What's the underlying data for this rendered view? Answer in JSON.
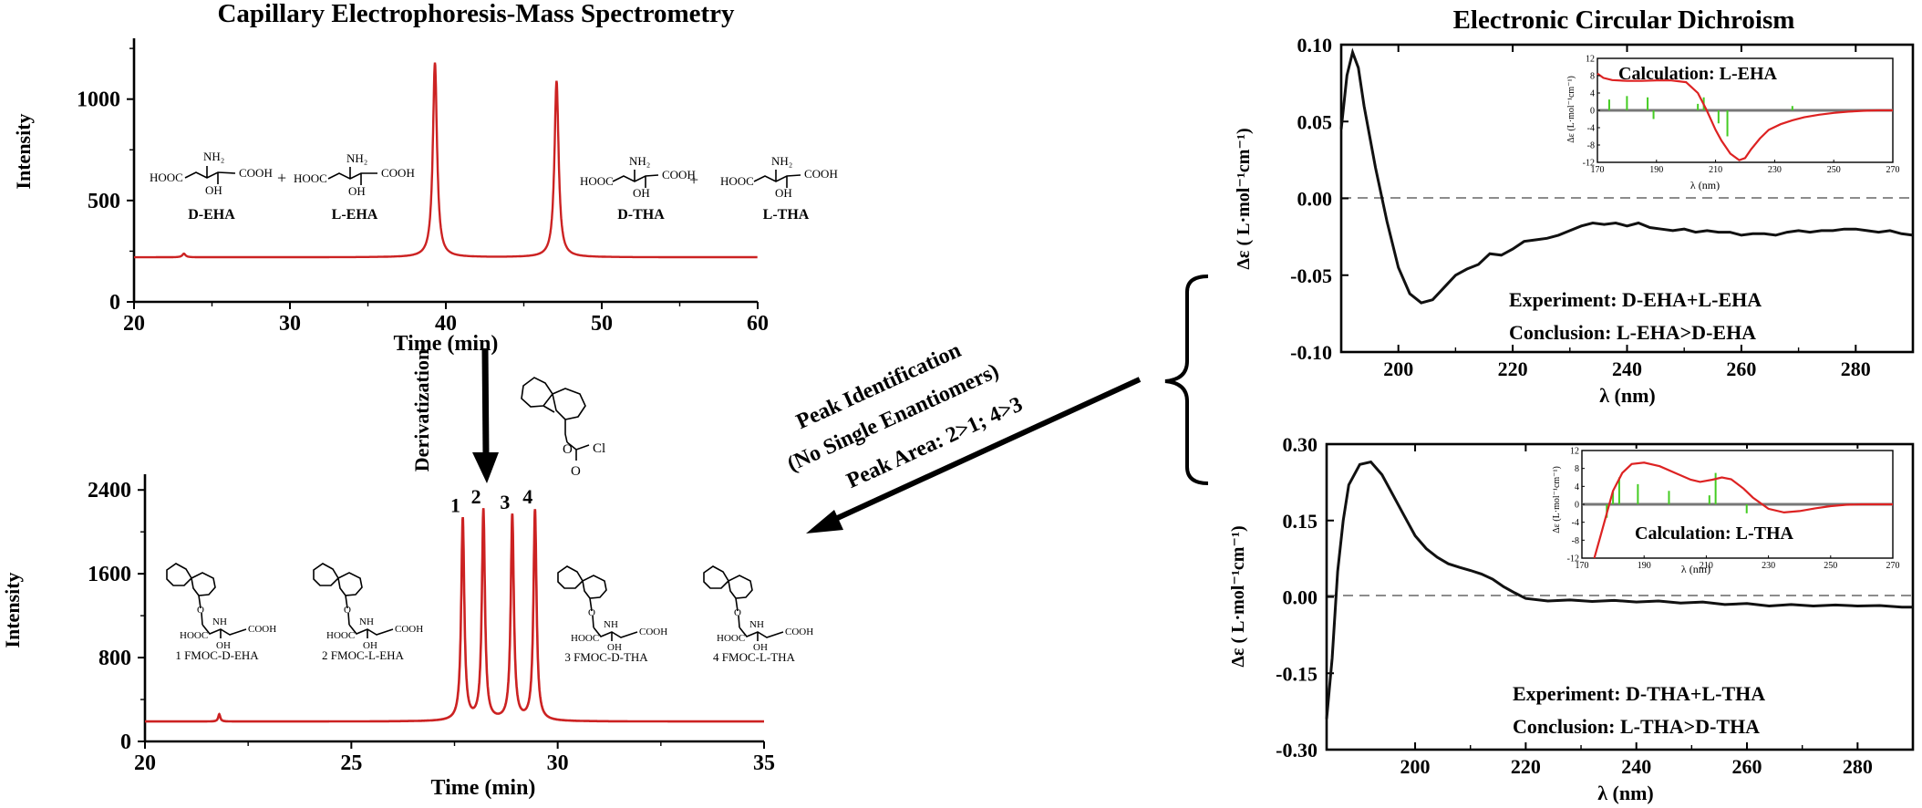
{
  "ce_ms": {
    "title": "Capillary Electrophoresis-Mass Spectrometry",
    "chart_data": {
      "type": "line",
      "xlabel": "Time (min)",
      "ylabel": "Intensity",
      "xlim": [
        20,
        60
      ],
      "ylim": [
        0,
        1300
      ],
      "xticks": [
        "20",
        "30",
        "40",
        "50",
        "60"
      ],
      "yticks": [
        "0",
        "500",
        "1000"
      ],
      "series": [
        {
          "color": "#cc2222",
          "baseline": 220,
          "peaks": [
            {
              "x": 23.2,
              "y": 238
            },
            {
              "x": 39.3,
              "y": 1180
            },
            {
              "x": 47.1,
              "y": 1090
            }
          ]
        }
      ]
    },
    "molecules": [
      {
        "name": "D-EHA",
        "nh2": "NH₂",
        "left": "HOOC",
        "right": "COOH",
        "oh": "OH"
      },
      {
        "name": "L-EHA",
        "nh2": "NH₂",
        "left": "HOOC",
        "right": "COOH",
        "oh": "OH"
      },
      {
        "name": "D-THA",
        "nh2": "NH₂",
        "left": "HOOC",
        "right": "COOH",
        "oh": "OH"
      },
      {
        "name": "L-THA",
        "nh2": "NH₂",
        "left": "HOOC",
        "right": "COOH",
        "oh": "OH"
      }
    ],
    "plus1": "+",
    "plus2": "+"
  },
  "derivatization": {
    "label": "Derivatization",
    "reagent": {
      "o": "O",
      "cl": "Cl"
    }
  },
  "fmoc_chart": {
    "chart_data": {
      "type": "line",
      "xlabel": "Time (min)",
      "ylabel": "Intensity",
      "xlim": [
        20,
        35
      ],
      "ylim": [
        0,
        2550
      ],
      "xticks": [
        "20",
        "25",
        "30",
        "35"
      ],
      "yticks": [
        "0",
        "800",
        "1600",
        "2400"
      ],
      "series": [
        {
          "color": "#cc2222",
          "baseline": 190,
          "peaks": [
            {
              "x": 21.8,
              "y": 260,
              "label": ""
            },
            {
              "x": 27.7,
              "y": 2120,
              "label": "1"
            },
            {
              "x": 28.2,
              "y": 2200,
              "label": "2"
            },
            {
              "x": 28.9,
              "y": 2150,
              "label": "3"
            },
            {
              "x": 29.45,
              "y": 2200,
              "label": "4"
            }
          ]
        }
      ]
    },
    "molecules": [
      {
        "name": "1 FMOC-D-EHA",
        "left": "HOOC",
        "right": "COOH",
        "oh": "OH",
        "nh": "NH",
        "o": "O"
      },
      {
        "name": "2 FMOC-L-EHA",
        "left": "HOOC",
        "right": "COOH",
        "oh": "OH",
        "nh": "NH",
        "o": "O"
      },
      {
        "name": "3 FMOC-D-THA",
        "left": "HOOC",
        "right": "COOH",
        "oh": "OH",
        "nh": "NH",
        "o": "O"
      },
      {
        "name": "4 FMOC-L-THA",
        "left": "HOOC",
        "right": "COOH",
        "oh": "OH",
        "nh": "NH",
        "o": "O"
      }
    ]
  },
  "arrow_labels": {
    "line1": "Peak Identification",
    "line2": "(No Single Enantiomers)",
    "line3": "Peak Area: 2>1; 4>3"
  },
  "ecd": {
    "title": "Electronic Circular Dichroism",
    "top": {
      "chart_data": {
        "type": "line",
        "xlabel": "λ (nm)",
        "ylabel": "Δε ( L·mol⁻¹cm⁻¹)",
        "xlim": [
          190,
          290
        ],
        "ylim": [
          -0.1,
          0.1
        ],
        "xticks": [
          "200",
          "220",
          "240",
          "260",
          "280"
        ],
        "yticks": [
          "0.10",
          "0.05",
          "0.00",
          "-0.05",
          "-0.10"
        ],
        "series": [
          {
            "color": "#111111",
            "x": [
              190,
              191,
              192,
              193,
              194,
              196,
              198,
              200,
              202,
              204,
              206,
              208,
              210,
              212,
              214,
              216,
              218,
              220,
              222,
              224,
              226,
              228,
              230,
              232,
              234,
              236,
              238,
              240,
              242,
              244,
              246,
              248,
              250,
              252,
              254,
              256,
              258,
              260,
              262,
              264,
              266,
              268,
              270,
              272,
              274,
              276,
              278,
              280,
              282,
              284,
              286,
              288,
              290
            ],
            "y": [
              0.045,
              0.08,
              0.095,
              0.085,
              0.06,
              0.02,
              -0.015,
              -0.045,
              -0.062,
              -0.068,
              -0.066,
              -0.058,
              -0.05,
              -0.046,
              -0.043,
              -0.036,
              -0.037,
              -0.033,
              -0.028,
              -0.027,
              -0.026,
              -0.024,
              -0.021,
              -0.018,
              -0.016,
              -0.017,
              -0.016,
              -0.018,
              -0.016,
              -0.019,
              -0.02,
              -0.021,
              -0.02,
              -0.022,
              -0.021,
              -0.022,
              -0.022,
              -0.024,
              -0.023,
              -0.023,
              -0.024,
              -0.022,
              -0.021,
              -0.022,
              -0.021,
              -0.021,
              -0.02,
              -0.02,
              -0.021,
              -0.022,
              -0.021,
              -0.023,
              -0.024
            ]
          }
        ],
        "annotations": [
          "Experiment: D-EHA+L-EHA",
          "Conclusion: L-EHA>D-EHA"
        ]
      },
      "inset": {
        "title": "Calculation: L-EHA",
        "xlabel": "λ (nm)",
        "ylabel": "Δε (L·mol⁻¹cm⁻¹)",
        "xlim": [
          170,
          270
        ],
        "ylim": [
          -12,
          12
        ],
        "xticks": [
          "170",
          "190",
          "210",
          "230",
          "250",
          "270"
        ],
        "yticks": [
          "12",
          "8",
          "4",
          "0",
          "-4",
          "-8",
          "-12"
        ],
        "curve_x": [
          170,
          172,
          175,
          180,
          185,
          190,
          195,
          200,
          204,
          207,
          210,
          212,
          215,
          218,
          220,
          222,
          225,
          228,
          232,
          236,
          240,
          245,
          250,
          255,
          260,
          265,
          270
        ],
        "curve_y": [
          8.5,
          7.5,
          7,
          6.8,
          6.8,
          6.9,
          6.9,
          6.5,
          4,
          0,
          -4.5,
          -7,
          -10,
          -11.5,
          -11,
          -9,
          -6.5,
          -4.5,
          -3.2,
          -2.3,
          -1.6,
          -1,
          -0.6,
          -0.3,
          -0.1,
          0,
          0
        ],
        "sticks": [
          {
            "x": 174,
            "y": 2.5
          },
          {
            "x": 180,
            "y": 3.3
          },
          {
            "x": 187,
            "y": 3
          },
          {
            "x": 189,
            "y": -2
          },
          {
            "x": 204,
            "y": 1.5
          },
          {
            "x": 206,
            "y": 3
          },
          {
            "x": 211,
            "y": -3
          },
          {
            "x": 214,
            "y": -6
          },
          {
            "x": 236,
            "y": 1
          }
        ],
        "colors": {
          "curve": "#dd2222",
          "sticks": "#44cc22",
          "zero": "#777777"
        }
      }
    },
    "bottom": {
      "chart_data": {
        "type": "line",
        "xlabel": "λ (nm)",
        "ylabel": "Δε ( L·mol⁻¹cm⁻¹)",
        "xlim": [
          184,
          290
        ],
        "ylim": [
          -0.3,
          0.3
        ],
        "xticks": [
          "200",
          "220",
          "240",
          "260",
          "280"
        ],
        "yticks": [
          "0.30",
          "0.15",
          "0.00",
          "-0.15",
          "-0.30"
        ],
        "series": [
          {
            "color": "#111111",
            "x": [
              184,
              185,
              186,
              187,
              188,
              190,
              192,
              194,
              196,
              198,
              200,
              202,
              204,
              206,
              208,
              210,
              212,
              214,
              216,
              218,
              220,
              224,
              228,
              232,
              236,
              240,
              244,
              248,
              252,
              256,
              260,
              264,
              268,
              272,
              276,
              280,
              284,
              288,
              290
            ],
            "y": [
              -0.24,
              -0.12,
              0.05,
              0.15,
              0.22,
              0.26,
              0.265,
              0.24,
              0.2,
              0.16,
              0.12,
              0.095,
              0.078,
              0.065,
              0.058,
              0.052,
              0.045,
              0.035,
              0.02,
              0.008,
              -0.003,
              -0.008,
              -0.006,
              -0.009,
              -0.007,
              -0.01,
              -0.008,
              -0.012,
              -0.01,
              -0.015,
              -0.013,
              -0.018,
              -0.015,
              -0.018,
              -0.016,
              -0.018,
              -0.017,
              -0.02,
              -0.02
            ]
          }
        ],
        "annotations": [
          "Experiment: D-THA+L-THA",
          "Conclusion: L-THA>D-THA"
        ]
      },
      "inset": {
        "title": "Calculation: L-THA",
        "xlabel": "λ (nm)",
        "ylabel": "Δε (L·mol⁻¹cm⁻¹)",
        "xlim": [
          170,
          270
        ],
        "ylim": [
          -12,
          12
        ],
        "xticks": [
          "170",
          "190",
          "210",
          "230",
          "250",
          "270"
        ],
        "yticks": [
          "12",
          "8",
          "4",
          "0",
          "-4",
          "-8",
          "-12"
        ],
        "curve_x": [
          174,
          176,
          178,
          180,
          183,
          186,
          190,
          195,
          200,
          205,
          208,
          212,
          215,
          218,
          222,
          225,
          230,
          235,
          240,
          245,
          250,
          255,
          260,
          265,
          270
        ],
        "curve_y": [
          -12,
          -7,
          -2,
          3,
          7,
          9,
          9.3,
          8.5,
          7,
          5.5,
          5,
          5.5,
          6,
          5.6,
          3.5,
          1.5,
          -1,
          -1.8,
          -1.5,
          -0.9,
          -0.4,
          -0.1,
          0,
          0,
          0
        ],
        "sticks": [
          {
            "x": 178,
            "y": -3
          },
          {
            "x": 180,
            "y": 3
          },
          {
            "x": 182,
            "y": 6
          },
          {
            "x": 188,
            "y": 4.5
          },
          {
            "x": 198,
            "y": 3
          },
          {
            "x": 211,
            "y": 2
          },
          {
            "x": 213,
            "y": 7
          },
          {
            "x": 223,
            "y": -2
          }
        ],
        "colors": {
          "curve": "#dd2222",
          "sticks": "#44cc22",
          "zero": "#777777"
        }
      }
    }
  }
}
